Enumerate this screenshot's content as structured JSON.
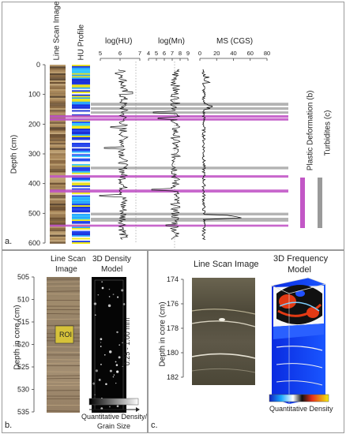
{
  "panel_a": {
    "col_line_scan": "Line Scan Image",
    "col_hu_profile": "HU Profile",
    "col_log_hu": "log(HU)",
    "col_log_mn": "log(Mn)",
    "col_ms": "MS (CGS)",
    "depth_axis_label": "Depth (cm)",
    "depth_ticks": [
      "0",
      "100",
      "200",
      "300",
      "400",
      "500",
      "600"
    ],
    "log_hu_ticks": [
      "5",
      "6",
      "7"
    ],
    "log_mn_ticks": [
      "4",
      "5",
      "6",
      "7",
      "8",
      "9"
    ],
    "ms_ticks": [
      "0",
      "20",
      "40",
      "60",
      "80"
    ],
    "legend_plastic": "Plastic Deformation (b)",
    "legend_turbidites": "Turbidites (c)",
    "plastic_color": "#c257c6",
    "turbidite_color": "#9a9a9a",
    "panel_letter": "a."
  },
  "panel_b": {
    "title_line_scan": "Line Scan",
    "title_line_scan_2": "Image",
    "title_density": "3D Density",
    "title_density_2": "Model",
    "depth_axis_label": "Depth in core (cm)",
    "depth_ticks": [
      "505",
      "510",
      "515",
      "520",
      "525",
      "530",
      "535"
    ],
    "roi_label": "ROI",
    "range_label": "0.25 - 1.00 mm",
    "scale_caption_1": "Quantitative Density/",
    "scale_caption_2": "Grain Size",
    "panel_letter": "b."
  },
  "panel_c": {
    "title_line_scan": "Line Scan Image",
    "title_frequency": "3D Frequency",
    "title_frequency_2": "Model",
    "depth_axis_label": "Depth in core (cm)",
    "depth_ticks": [
      "174",
      "176",
      "178",
      "180",
      "182"
    ],
    "scale_caption": "Quantitative Density",
    "panel_letter": "c."
  }
}
